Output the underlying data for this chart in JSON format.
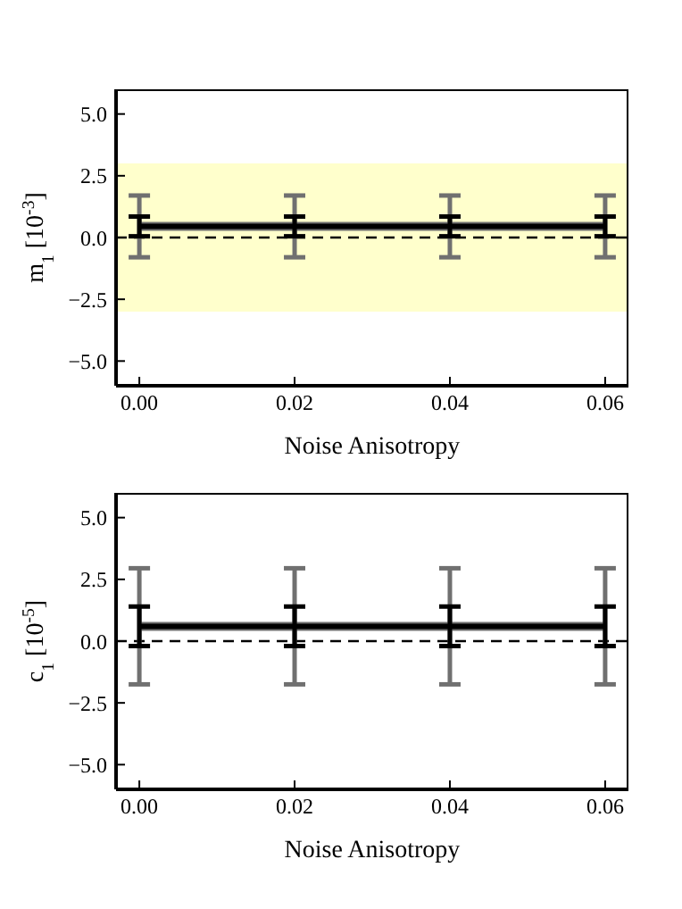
{
  "chart_data": [
    {
      "type": "line",
      "ylabel": "m$_{1}$ [10$^{-3}$]",
      "xlabel": "Noise Anisotropy",
      "x": [
        0,
        0.02,
        0.04,
        0.06
      ],
      "xlim": [
        -0.003,
        0.063
      ],
      "xticks": [
        {
          "value": 0,
          "label": "0.00"
        },
        {
          "value": 0.02,
          "label": "0.02"
        },
        {
          "value": 0.04,
          "label": "0.04"
        },
        {
          "value": 0.06,
          "label": "0.06"
        }
      ],
      "ylim": [
        -6,
        6
      ],
      "yticks": [
        {
          "value": -5,
          "label": "−5.0"
        },
        {
          "value": -2.5,
          "label": "−2.5"
        },
        {
          "value": 0,
          "label": "0.0"
        },
        {
          "value": 2.5,
          "label": "2.5"
        },
        {
          "value": 5,
          "label": "5.0"
        }
      ],
      "grid": false,
      "legend": false,
      "marker": "none",
      "series": [
        {
          "color": "#707070",
          "values": [
            0.45,
            0.45,
            0.45,
            0.45
          ],
          "errors": [
            1.25,
            1.25,
            1.25,
            1.25
          ]
        },
        {
          "color": "#000000",
          "values": [
            0.45,
            0.45,
            0.45,
            0.45
          ],
          "errors": [
            0.4,
            0.4,
            0.4,
            0.4
          ]
        }
      ],
      "bands": [
        {
          "axis": "y",
          "from": -3,
          "to": 3,
          "color": "#ffffcc"
        }
      ],
      "ref_lines": [
        {
          "axis": "y",
          "value": 0,
          "color": "#000000",
          "line_style": "dashed"
        }
      ]
    },
    {
      "type": "line",
      "ylabel": "c$_{1}$ [10$^{-5}$]",
      "xlabel": "Noise Anisotropy",
      "x": [
        0,
        0.02,
        0.04,
        0.06
      ],
      "xlim": [
        -0.003,
        0.063
      ],
      "xticks": [
        {
          "value": 0,
          "label": "0.00"
        },
        {
          "value": 0.02,
          "label": "0.02"
        },
        {
          "value": 0.04,
          "label": "0.04"
        },
        {
          "value": 0.06,
          "label": "0.06"
        }
      ],
      "ylim": [
        -6,
        6
      ],
      "yticks": [
        {
          "value": -5,
          "label": "−5.0"
        },
        {
          "value": -2.5,
          "label": "−2.5"
        },
        {
          "value": 0,
          "label": "0.0"
        },
        {
          "value": 2.5,
          "label": "2.5"
        },
        {
          "value": 5,
          "label": "5.0"
        }
      ],
      "grid": false,
      "legend": false,
      "marker": "none",
      "series": [
        {
          "color": "#707070",
          "values": [
            0.6,
            0.6,
            0.6,
            0.6
          ],
          "errors": [
            2.35,
            2.35,
            2.35,
            2.35
          ]
        },
        {
          "color": "#000000",
          "values": [
            0.6,
            0.6,
            0.6,
            0.6
          ],
          "errors": [
            0.8,
            0.8,
            0.8,
            0.8
          ]
        }
      ],
      "ref_lines": [
        {
          "axis": "y",
          "value": 0,
          "color": "#000000",
          "line_style": "dashed"
        }
      ]
    }
  ]
}
